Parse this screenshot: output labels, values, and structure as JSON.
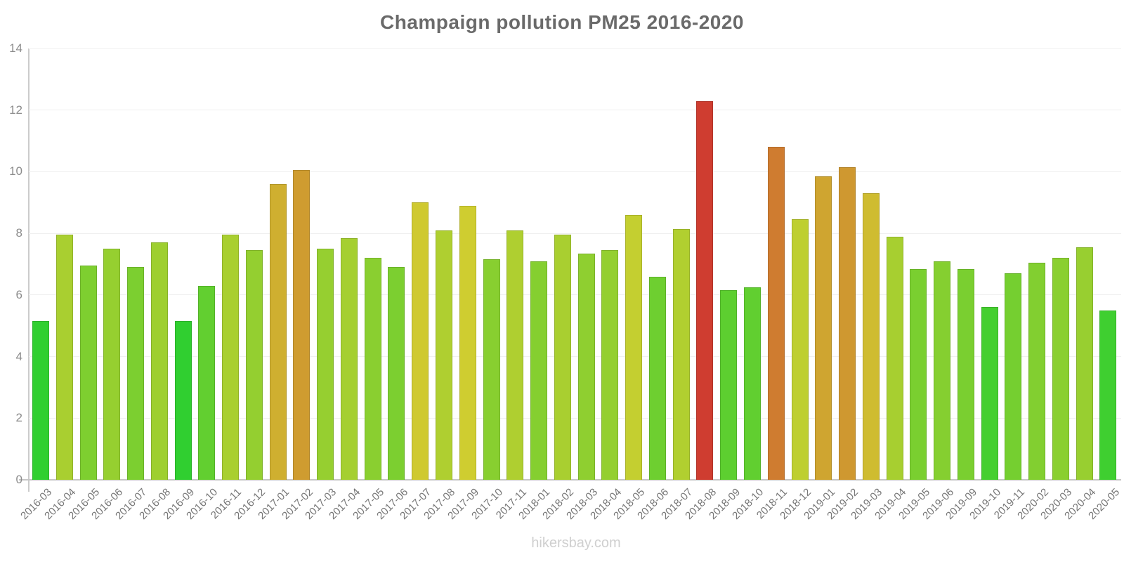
{
  "title": "Champaign pollution PM25 2016-2020",
  "watermark": "hikersbay.com",
  "colors": {
    "background": "#ffffff",
    "title_text": "#6a6a6a",
    "y_tick_text": "#8c8c8c",
    "x_tick_text": "#757575",
    "gridline": "#f0f0f0",
    "axis_line": "#c6c6c6",
    "watermark_text": "#cfcfcf",
    "low_value_green": "#30CF30",
    "mid_value_yellow": "#CFC930",
    "high_value_orange": "#CF7C30",
    "max_value_red": "#CF3D30"
  },
  "chart_data": {
    "type": "bar",
    "title": "Champaign pollution PM25 2016-2020",
    "xlabel": "",
    "ylabel": "",
    "ylim": [
      0,
      14
    ],
    "y_ticks": [
      0,
      2,
      4,
      6,
      8,
      10,
      12,
      14
    ],
    "grid": true,
    "legend": false,
    "x_tick_rotation": -45,
    "categories": [
      "2016-03",
      "2016-04",
      "2016-05",
      "2016-06",
      "2016-07",
      "2016-08",
      "2016-09",
      "2016-10",
      "2016-11",
      "2016-12",
      "2017-01",
      "2017-02",
      "2017-03",
      "2017-04",
      "2017-05",
      "2017-06",
      "2017-07",
      "2017-08",
      "2017-09",
      "2017-10",
      "2017-11",
      "2018-01",
      "2018-02",
      "2018-03",
      "2018-04",
      "2018-05",
      "2018-06",
      "2018-07",
      "2018-08",
      "2018-09",
      "2018-10",
      "2018-11",
      "2018-12",
      "2019-01",
      "2019-02",
      "2019-03",
      "2019-04",
      "2019-05",
      "2019-06",
      "2019-09",
      "2019-10",
      "2019-11",
      "2020-02",
      "2020-03",
      "2020-04",
      "2020-05"
    ],
    "values": [
      5.15,
      7.95,
      6.95,
      7.5,
      6.9,
      7.7,
      5.15,
      6.3,
      7.95,
      7.45,
      9.6,
      10.05,
      7.5,
      7.85,
      7.2,
      6.9,
      9.0,
      8.1,
      8.9,
      7.15,
      8.1,
      7.1,
      7.95,
      7.35,
      7.45,
      8.6,
      6.6,
      8.15,
      12.3,
      6.15,
      6.25,
      10.8,
      8.45,
      9.85,
      10.15,
      9.3,
      7.9,
      6.85,
      7.1,
      6.85,
      5.6,
      6.7,
      7.05,
      7.2,
      7.55,
      5.5
    ],
    "bar_colors": [
      "#30CF30",
      "#A9CF30",
      "#7ECF30",
      "#96CF30",
      "#7CCF30",
      "#9ECF30",
      "#30CF30",
      "#62CF30",
      "#A9CF30",
      "#94CF30",
      "#CFAF30",
      "#CF9C30",
      "#96CF30",
      "#A5CF30",
      "#8ACF30",
      "#7CCF30",
      "#CFC930",
      "#AFCF30",
      "#CFCD30",
      "#88CF30",
      "#AFCF30",
      "#85CF30",
      "#A9CF30",
      "#8FCF30",
      "#94CF30",
      "#C4CF30",
      "#6ECF30",
      "#B1CF30",
      "#CF3D30",
      "#5DCF30",
      "#61CF30",
      "#CF7C30",
      "#BECF30",
      "#CFA530",
      "#CF9830",
      "#CFBC30",
      "#A7CF30",
      "#7ACF30",
      "#85CF30",
      "#7ACF30",
      "#45CF30",
      "#75CF30",
      "#82CF30",
      "#8ACF30",
      "#98CF30",
      "#3FCF30"
    ]
  }
}
